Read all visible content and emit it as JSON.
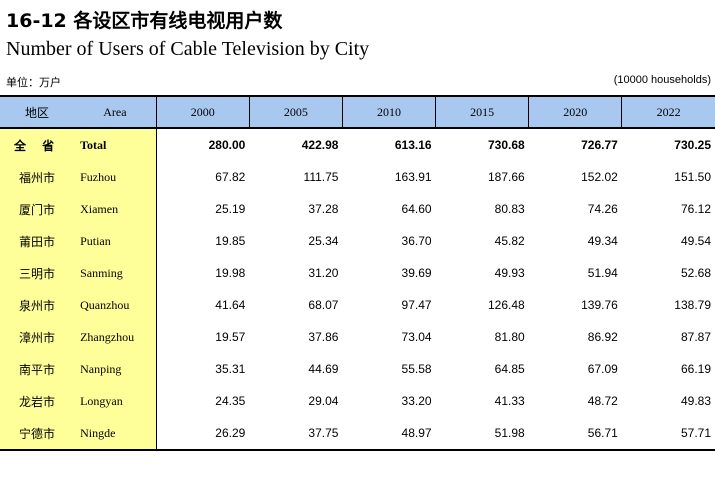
{
  "header": {
    "title_cn": "16-12  各设区市有线电视用户数",
    "title_en": "Number of Users of Cable Television by City",
    "unit_cn": "单位：万户",
    "unit_en": "(10000 households)"
  },
  "table": {
    "col_region_cn": "地区",
    "col_region_en": "Area",
    "years": [
      "2000",
      "2005",
      "2010",
      "2015",
      "2020",
      "2022"
    ],
    "rows": [
      {
        "cn": "全 省",
        "en": "Total",
        "values": [
          "280.00",
          "422.98",
          "613.16",
          "730.68",
          "726.77",
          "730.25"
        ]
      },
      {
        "cn": "福州市",
        "en": "Fuzhou",
        "values": [
          "67.82",
          "111.75",
          "163.91",
          "187.66",
          "152.02",
          "151.50"
        ]
      },
      {
        "cn": "厦门市",
        "en": "Xiamen",
        "values": [
          "25.19",
          "37.28",
          "64.60",
          "80.83",
          "74.26",
          "76.12"
        ]
      },
      {
        "cn": "莆田市",
        "en": "Putian",
        "values": [
          "19.85",
          "25.34",
          "36.70",
          "45.82",
          "49.34",
          "49.54"
        ]
      },
      {
        "cn": "三明市",
        "en": "Sanming",
        "values": [
          "19.98",
          "31.20",
          "39.69",
          "49.93",
          "51.94",
          "52.68"
        ]
      },
      {
        "cn": "泉州市",
        "en": "Quanzhou",
        "values": [
          "41.64",
          "68.07",
          "97.47",
          "126.48",
          "139.76",
          "138.79"
        ]
      },
      {
        "cn": "漳州市",
        "en": "Zhangzhou",
        "values": [
          "19.57",
          "37.86",
          "73.04",
          "81.80",
          "86.92",
          "87.87"
        ]
      },
      {
        "cn": "南平市",
        "en": "Nanping",
        "values": [
          "35.31",
          "44.69",
          "55.58",
          "64.85",
          "67.09",
          "66.19"
        ]
      },
      {
        "cn": "龙岩市",
        "en": "Longyan",
        "values": [
          "24.35",
          "29.04",
          "33.20",
          "41.33",
          "48.72",
          "49.83"
        ]
      },
      {
        "cn": "宁德市",
        "en": "Ningde",
        "values": [
          "26.29",
          "37.75",
          "48.97",
          "51.98",
          "56.71",
          "57.71"
        ]
      }
    ]
  }
}
